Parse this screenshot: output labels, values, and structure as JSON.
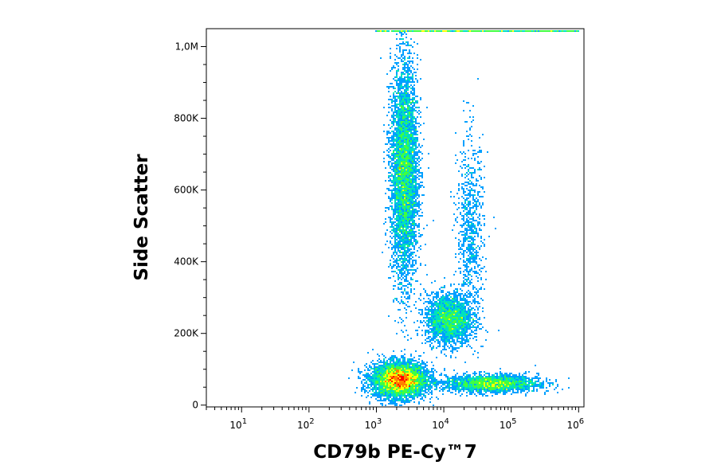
{
  "chart_data": {
    "type": "scatter",
    "title": "",
    "xlabel": "CD79b PE-Cy™7",
    "ylabel": "Side Scatter",
    "x_scale": "log",
    "xlim": [
      3,
      1200000
    ],
    "ylim": [
      -5000,
      1050000
    ],
    "x_ticks": [
      {
        "value": 10,
        "base": "10",
        "exp": "1"
      },
      {
        "value": 100,
        "base": "10",
        "exp": "2"
      },
      {
        "value": 1000,
        "base": "10",
        "exp": "3"
      },
      {
        "value": 10000,
        "base": "10",
        "exp": "4"
      },
      {
        "value": 100000,
        "base": "10",
        "exp": "5"
      },
      {
        "value": 1000000,
        "base": "10",
        "exp": "6"
      }
    ],
    "y_ticks": [
      {
        "value": 0,
        "label": "0"
      },
      {
        "value": 200000,
        "label": "200K"
      },
      {
        "value": 400000,
        "label": "400K"
      },
      {
        "value": 600000,
        "label": "600K"
      },
      {
        "value": 800000,
        "label": "800K"
      },
      {
        "value": 1000000,
        "label": "1,0M"
      }
    ],
    "grid": false,
    "legend": "none",
    "density_colors": [
      "#0000ff",
      "#00a0ff",
      "#00e0c0",
      "#40ff40",
      "#ffff00",
      "#ff8000",
      "#ff0000"
    ],
    "populations": [
      {
        "center_x": 2200,
        "center_y": 70000,
        "spread_log_x": 0.2,
        "spread_y": 24000,
        "density": "high"
      },
      {
        "center_x": 2600,
        "center_y": 650000,
        "spread_log_x": 0.1,
        "spread_y": 150000,
        "density": "high"
      },
      {
        "center_x": 12000,
        "center_y": 240000,
        "spread_log_x": 0.17,
        "spread_y": 35000,
        "density": "medium"
      },
      {
        "center_x": 25000,
        "center_y": 480000,
        "spread_log_x": 0.1,
        "spread_y": 130000,
        "density": "low"
      },
      {
        "center_x": 50000,
        "center_y": 60000,
        "spread_log_x": 0.35,
        "spread_y": 12000,
        "density": "medium"
      }
    ]
  }
}
